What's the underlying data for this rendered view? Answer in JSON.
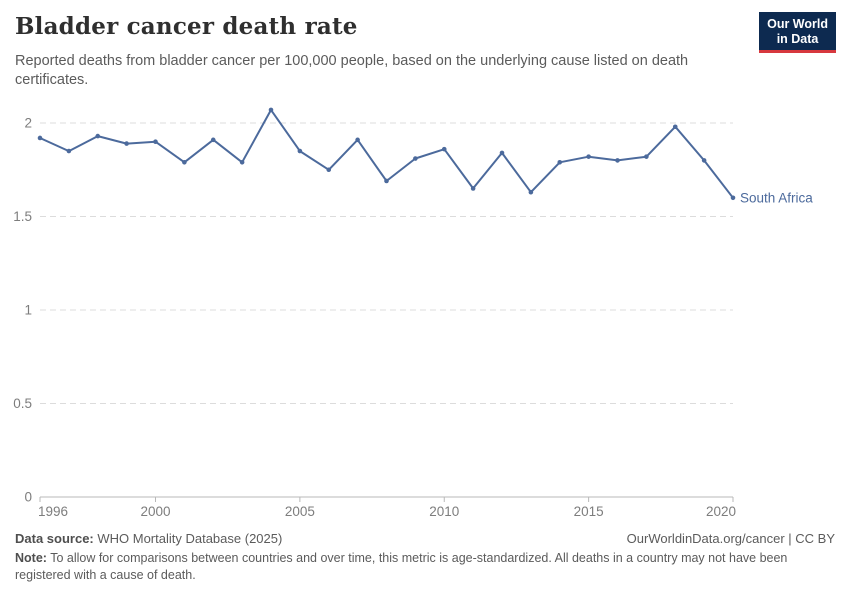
{
  "header": {
    "title": "Bladder cancer death rate",
    "subtitle": "Reported deaths from bladder cancer per 100,000 people, based on the underlying cause listed on death certificates.",
    "logo": {
      "line1": "Our World",
      "line2": "in Data"
    }
  },
  "chart_data": {
    "type": "line",
    "title": "Bladder cancer death rate",
    "x": [
      1996,
      1997,
      1998,
      1999,
      2000,
      2001,
      2002,
      2003,
      2004,
      2005,
      2006,
      2007,
      2008,
      2009,
      2010,
      2011,
      2012,
      2013,
      2014,
      2015,
      2016,
      2017,
      2018,
      2019,
      2020
    ],
    "series": [
      {
        "name": "South Africa",
        "color": "#4C6A9C",
        "values": [
          1.92,
          1.85,
          1.93,
          1.89,
          1.9,
          1.79,
          1.91,
          1.79,
          2.07,
          1.85,
          1.75,
          1.91,
          1.69,
          1.81,
          1.86,
          1.65,
          1.84,
          1.63,
          1.79,
          1.82,
          1.8,
          1.82,
          1.98,
          1.8,
          1.6
        ]
      }
    ],
    "entity_label": "South Africa",
    "xticks": [
      1996,
      2000,
      2005,
      2010,
      2015,
      2020
    ],
    "yticks": [
      0,
      0.5,
      1,
      1.5,
      2
    ],
    "ytick_labels": [
      "0",
      "0.5",
      "1",
      "1.5",
      "2"
    ],
    "ylim": [
      0,
      2.12
    ],
    "xlabel": "",
    "ylabel": "",
    "grid": "horizontal-dashed",
    "legend_position": "end-of-line"
  },
  "footer": {
    "datasource_label": "Data source:",
    "datasource_value": " WHO Mortality Database (2025)",
    "link": "OurWorldinData.org/cancer | CC BY",
    "note_label": "Note:",
    "note_value": " To allow for comparisons between countries and over time, this metric is age-standardized. All deaths in a country may not have been registered with a cause of death."
  },
  "colors": {
    "line": "#4C6A9C",
    "grid": "#dcdcdc",
    "axis": "#b8b8b8",
    "tick_label": "#7d7d7d",
    "logo_bg": "#0d2a50",
    "logo_accent": "#d7383e"
  }
}
